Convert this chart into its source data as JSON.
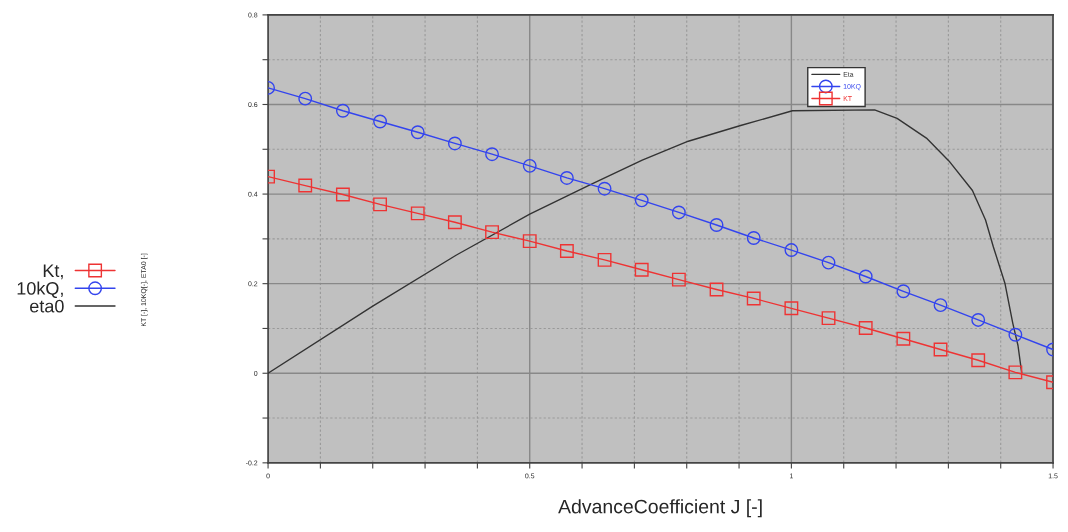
{
  "chart_data": {
    "type": "line",
    "xlabel": "AdvanceCoefficient J [-]",
    "xlim": [
      0,
      1.5
    ],
    "ylim": [
      -0.2,
      0.8
    ],
    "xticks": [
      0,
      {
        "value": 0.1,
        "label": null
      },
      {
        "value": 0.2,
        "label": null
      },
      {
        "value": 0.3,
        "label": null
      },
      {
        "value": 0.4,
        "label": null
      },
      0.5,
      {
        "value": 0.6,
        "label": null
      },
      {
        "value": 0.7,
        "label": null
      },
      {
        "value": 0.8,
        "label": null
      },
      {
        "value": 0.9,
        "label": null
      },
      1,
      {
        "value": 1.1,
        "label": null
      },
      {
        "value": 1.2,
        "label": null
      },
      {
        "value": 1.3,
        "label": null
      },
      {
        "value": 1.4,
        "label": null
      },
      1.5
    ],
    "yticks": [
      -0.2,
      {
        "value": -0.1,
        "label": null
      },
      0,
      {
        "value": 0.1,
        "label": null
      },
      0.2,
      {
        "value": 0.3,
        "label": null
      },
      0.4,
      {
        "value": 0.5,
        "label": null
      },
      0.6,
      {
        "value": 0.7,
        "label": null
      },
      0.8
    ],
    "grid": true,
    "legend": "top right",
    "annotations": [
      "KT [-], 10KQ[-], ETA0 [-]",
      "Kt,",
      "10kQ,",
      "eta0"
    ],
    "series": [
      {
        "name": "Eta",
        "color": "#333333",
        "marker": "none",
        "x": [
          0,
          0.2,
          0.36,
          0.5,
          0.616,
          0.715,
          0.803,
          0.903,
          1.002,
          1.159,
          1.202,
          1.258,
          1.301,
          1.346,
          1.371,
          1.386,
          1.408,
          1.423,
          1.433,
          1.44
        ],
        "values": [
          0,
          0.15,
          0.264,
          0.355,
          0.421,
          0.476,
          0.518,
          0.553,
          0.586,
          0.588,
          0.569,
          0.525,
          0.474,
          0.408,
          0.342,
          0.282,
          0.201,
          0.112,
          0.062,
          0.002
        ]
      },
      {
        "name": "10KQ",
        "color": "#3344ee",
        "marker": "circle",
        "x": [
          0,
          0.071,
          0.143,
          0.214,
          0.286,
          0.357,
          0.428,
          0.5,
          0.571,
          0.643,
          0.714,
          0.785,
          0.857,
          0.928,
          1.0,
          1.071,
          1.142,
          1.214,
          1.285,
          1.357,
          1.428,
          1.5
        ],
        "values": [
          0.637,
          0.613,
          0.586,
          0.562,
          0.538,
          0.513,
          0.489,
          0.463,
          0.436,
          0.412,
          0.386,
          0.359,
          0.331,
          0.302,
          0.275,
          0.247,
          0.216,
          0.183,
          0.152,
          0.119,
          0.086,
          0.053
        ]
      },
      {
        "name": "KT",
        "color": "#ee3333",
        "marker": "square",
        "x": [
          0,
          0.071,
          0.143,
          0.214,
          0.286,
          0.357,
          0.428,
          0.5,
          0.571,
          0.643,
          0.714,
          0.785,
          0.857,
          0.928,
          1.0,
          1.071,
          1.142,
          1.214,
          1.285,
          1.357,
          1.428,
          1.5
        ],
        "values": [
          0.439,
          0.419,
          0.399,
          0.377,
          0.357,
          0.337,
          0.315,
          0.295,
          0.273,
          0.253,
          0.231,
          0.209,
          0.187,
          0.167,
          0.145,
          0.123,
          0.101,
          0.077,
          0.053,
          0.029,
          0.002,
          -0.02
        ]
      }
    ]
  }
}
